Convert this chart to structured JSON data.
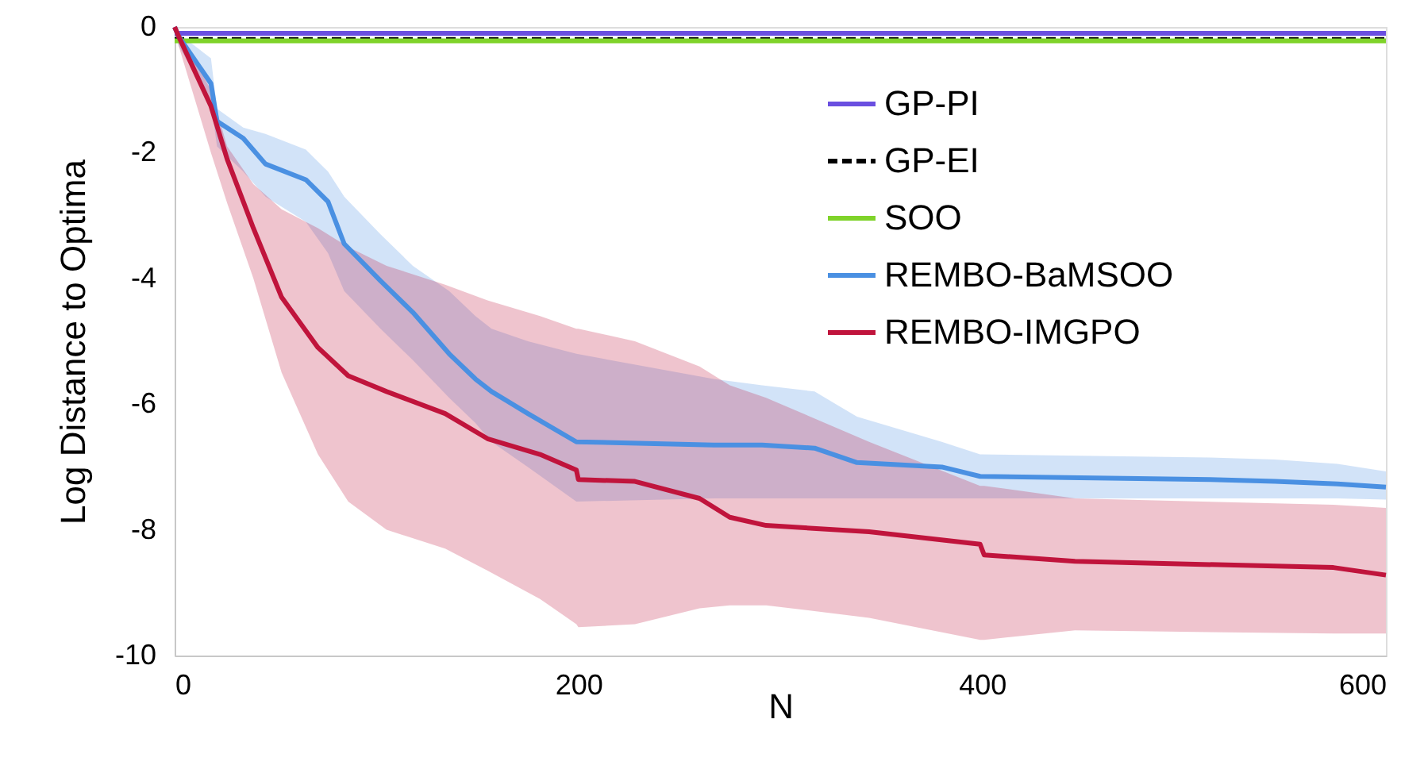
{
  "chart_data": {
    "type": "line",
    "xlabel": "N",
    "ylabel": "Log Distance to Optima",
    "xlim": [
      0,
      600
    ],
    "ylim": [
      -10,
      0
    ],
    "xticks": [
      0,
      200,
      400,
      600
    ],
    "yticks": [
      0,
      -2,
      -4,
      -6,
      -8,
      -10
    ],
    "grid": false,
    "legend": "top right",
    "marker": "none",
    "series": [
      {
        "name": "GP-PI",
        "color": "#6a4fe0",
        "line_style": "solid",
        "x": [
          0,
          600
        ],
        "values": [
          -0.1,
          -0.1
        ]
      },
      {
        "name": "GP-EI",
        "color": "#000000",
        "line_style": "dashed",
        "x": [
          0,
          600
        ],
        "values": [
          -0.2,
          -0.2
        ]
      },
      {
        "name": "SOO",
        "color": "#7fd32a",
        "line_style": "solid",
        "x": [
          0,
          600
        ],
        "values": [
          -0.22,
          -0.22
        ]
      },
      {
        "name": "REMBO-BaMSOO",
        "color": "#4a90e2",
        "line_style": "solid",
        "x": [
          0,
          2,
          18,
          21,
          34,
          45,
          65,
          76,
          84,
          102,
          118,
          136,
          149,
          157,
          175,
          199,
          267,
          291,
          317,
          338,
          380,
          399,
          513,
          545,
          576,
          600
        ],
        "values": [
          0,
          -0.15,
          -0.9,
          -1.5,
          -1.77,
          -2.18,
          -2.43,
          -2.78,
          -3.45,
          -4.04,
          -4.54,
          -5.2,
          -5.6,
          -5.8,
          -6.15,
          -6.6,
          -6.65,
          -6.65,
          -6.7,
          -6.93,
          -7.0,
          -7.15,
          -7.2,
          -7.23,
          -7.27,
          -7.32
        ],
        "upper": [
          0,
          -0.1,
          -0.5,
          -1.3,
          -1.6,
          -1.7,
          -1.95,
          -2.3,
          -2.7,
          -3.3,
          -3.8,
          -4.2,
          -4.6,
          -4.8,
          -5.0,
          -5.2,
          -5.6,
          -5.7,
          -5.8,
          -6.2,
          -6.6,
          -6.8,
          -6.85,
          -6.88,
          -6.95,
          -7.07
        ],
        "lower": [
          0,
          -0.3,
          -1.2,
          -1.9,
          -2.3,
          -2.7,
          -3.1,
          -3.6,
          -4.2,
          -4.8,
          -5.3,
          -5.9,
          -6.3,
          -6.6,
          -7.0,
          -7.55,
          -7.5,
          -7.5,
          -7.5,
          -7.5,
          -7.5,
          -7.5,
          -7.5,
          -7.5,
          -7.5,
          -7.52
        ]
      },
      {
        "name": "REMBO-IMGPO",
        "color": "#c0143c",
        "line_style": "solid",
        "x": [
          0,
          2,
          18,
          26,
          39,
          53,
          71,
          86,
          105,
          134,
          155,
          181,
          199,
          200,
          228,
          260,
          275,
          293,
          344,
          399,
          401,
          446,
          574,
          600
        ],
        "values": [
          0,
          -0.15,
          -1.26,
          -2.1,
          -3.2,
          -4.3,
          -5.1,
          -5.55,
          -5.8,
          -6.15,
          -6.55,
          -6.8,
          -7.05,
          -7.2,
          -7.23,
          -7.5,
          -7.8,
          -7.93,
          -8.03,
          -8.23,
          -8.4,
          -8.5,
          -8.6,
          -8.72
        ],
        "upper": [
          0,
          -0.1,
          -1.0,
          -1.9,
          -2.5,
          -2.9,
          -3.2,
          -3.5,
          -3.8,
          -4.1,
          -4.35,
          -4.6,
          -4.8,
          -4.8,
          -5.0,
          -5.4,
          -5.7,
          -5.9,
          -6.6,
          -7.3,
          -7.3,
          -7.5,
          -7.6,
          -7.65
        ],
        "lower": [
          0,
          -0.3,
          -2.0,
          -2.8,
          -4.0,
          -5.5,
          -6.8,
          -7.55,
          -8.0,
          -8.3,
          -8.65,
          -9.1,
          -9.5,
          -9.55,
          -9.5,
          -9.25,
          -9.2,
          -9.2,
          -9.4,
          -9.75,
          -9.75,
          -9.6,
          -9.65,
          -9.65
        ]
      }
    ]
  }
}
